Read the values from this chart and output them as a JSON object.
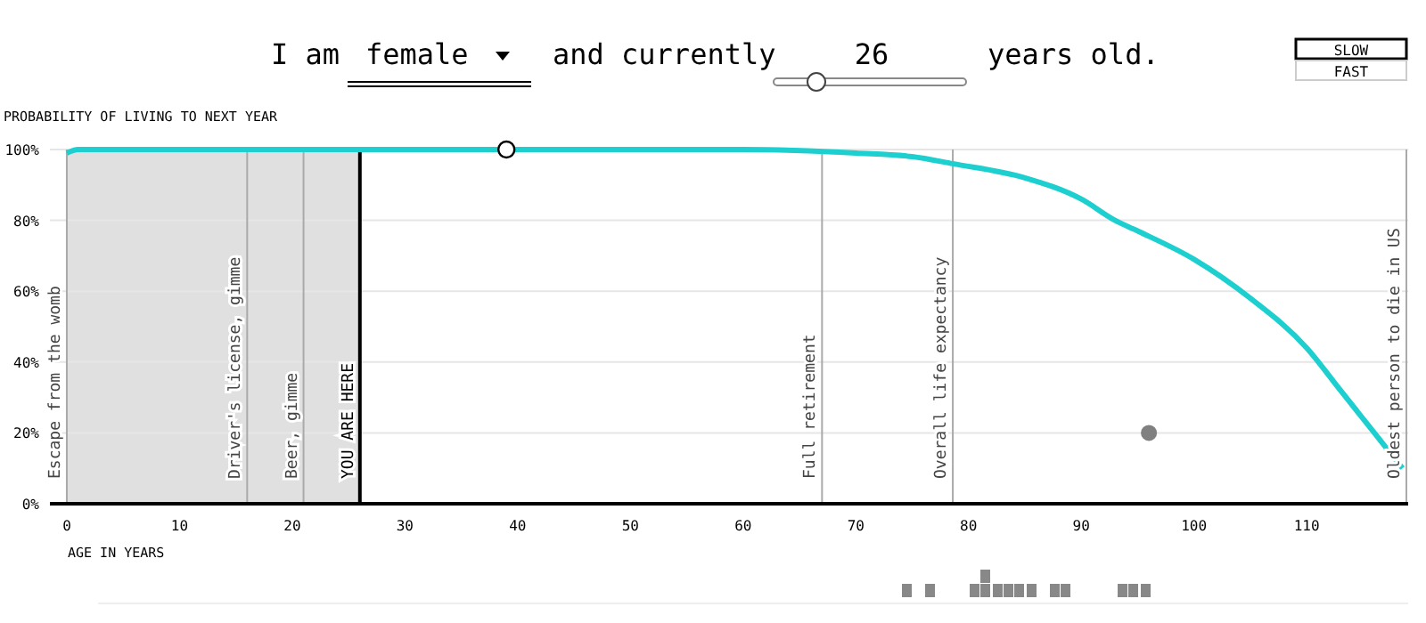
{
  "chart_data": {
    "type": "line",
    "ylabel": "PROBABILITY OF LIVING TO NEXT YEAR",
    "xlabel": "AGE IN YEARS",
    "annotations": [
      "I am",
      "female",
      "and currently",
      "26",
      "years old.",
      "SLOW",
      "FAST"
    ],
    "xlim": [
      -1.5,
      119
    ],
    "xticks": [
      0,
      10,
      20,
      30,
      40,
      50,
      60,
      70,
      80,
      90,
      100,
      110
    ],
    "ylim": [
      0,
      100
    ],
    "yticks": [
      {
        "value": 0,
        "label": "0%"
      },
      {
        "value": 20,
        "label": "20%"
      },
      {
        "value": 40,
        "label": "40%"
      },
      {
        "value": 60,
        "label": "60%"
      },
      {
        "value": 80,
        "label": "80%"
      },
      {
        "value": 100,
        "label": "100%"
      }
    ],
    "grid": "y",
    "series": [
      {
        "type": "line",
        "color": "#1ecfcf",
        "x": [
          0,
          1,
          26,
          50,
          60,
          70,
          75,
          78.6,
          85,
          90,
          93,
          95,
          100,
          105,
          110,
          113,
          116,
          118.5
        ],
        "values": [
          99,
          100,
          100,
          100,
          100,
          99,
          98,
          96,
          92,
          86,
          80,
          77,
          69,
          58,
          44,
          32,
          20,
          10
        ]
      },
      {
        "type": "scatter",
        "color": "#ffffff",
        "x": [
          39
        ],
        "values": [
          100
        ]
      },
      {
        "type": "scatter",
        "color": "#808080",
        "x": [
          96
        ],
        "values": [
          20
        ]
      }
    ],
    "bands": [
      {
        "axis": "x",
        "from": 0,
        "to": 26,
        "color": "#e0e0e0"
      }
    ],
    "ref_lines": [
      {
        "axis": "x",
        "value": 0,
        "label": "Escape from the womb",
        "color": "#aaaaaa"
      },
      {
        "axis": "x",
        "value": 16,
        "label": "Driver's license, gimme",
        "color": "#aaaaaa"
      },
      {
        "axis": "x",
        "value": 21,
        "label": "Beer, gimme",
        "color": "#aaaaaa"
      },
      {
        "axis": "x",
        "value": 26,
        "label": "YOU ARE HERE",
        "color": "#000000"
      },
      {
        "axis": "x",
        "value": 67,
        "label": "Full retirement",
        "color": "#aaaaaa"
      },
      {
        "axis": "x",
        "value": 78.6,
        "label": "Overall life expectancy",
        "color": "#aaaaaa"
      },
      {
        "axis": "x",
        "value": 119,
        "label": "Oldest person to die in US",
        "color": "#aaaaaa"
      }
    ]
  }
}
